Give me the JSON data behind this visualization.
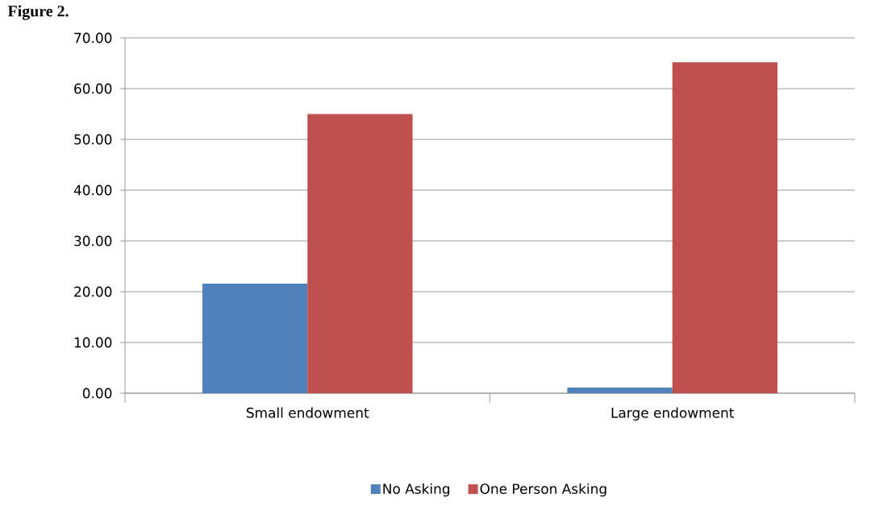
{
  "chart_data": {
    "type": "bar",
    "title": "Figure 2.",
    "categories": [
      "Small endowment",
      "Large endowment"
    ],
    "series": [
      {
        "name": "No Asking",
        "color": "#4f81bd",
        "values": [
          21.6,
          1.1
        ]
      },
      {
        "name": "One Person Asking",
        "color": "#c0504d",
        "values": [
          55,
          65.2
        ]
      }
    ],
    "ylim": [
      0,
      70
    ],
    "yticks": [
      {
        "value": 0,
        "label": "0.00"
      },
      {
        "value": 10,
        "label": "10.00"
      },
      {
        "value": 20,
        "label": "20.00"
      },
      {
        "value": 30,
        "label": "30.00"
      },
      {
        "value": 40,
        "label": "40.00"
      },
      {
        "value": 50,
        "label": "50.00"
      },
      {
        "value": 60,
        "label": "60.00"
      },
      {
        "value": 70,
        "label": "70.00"
      }
    ],
    "grid": "y",
    "legend": "bottom"
  }
}
